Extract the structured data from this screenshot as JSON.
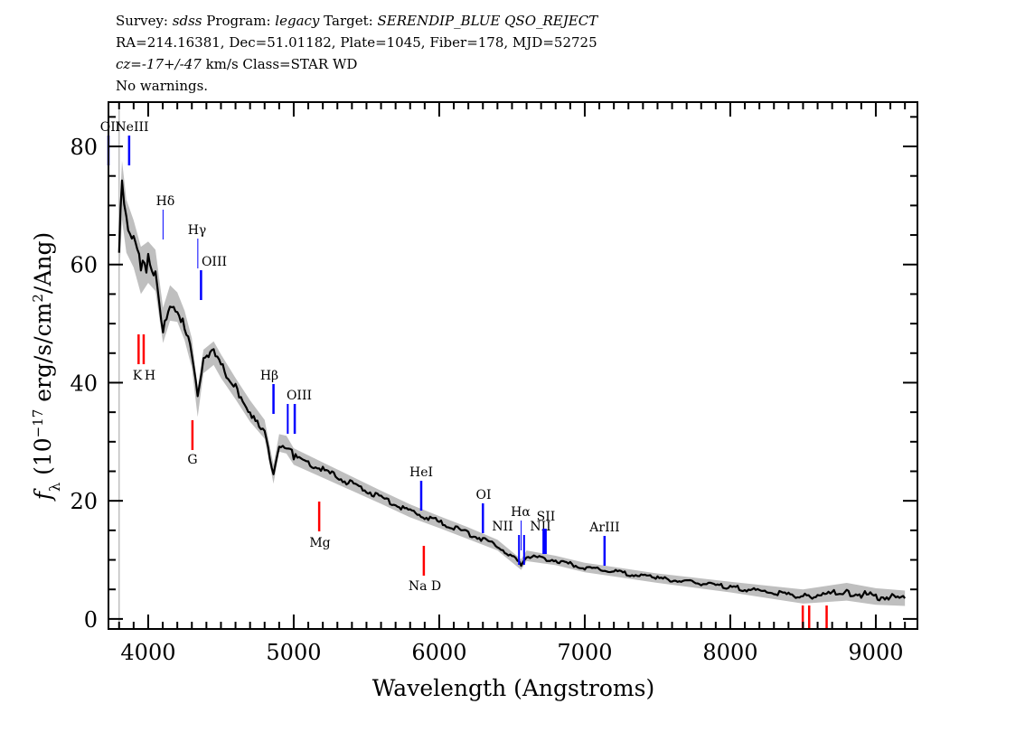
{
  "header": {
    "line1": {
      "survey_label": "Survey: ",
      "survey": "sdss",
      "program_label": " Program: ",
      "program": "legacy",
      "target_label": " Target: ",
      "target": "SERENDIP_BLUE QSO_REJECT"
    },
    "line2": "RA=214.16381, Dec=51.01182, Plate=1045, Fiber=178, MJD=52725",
    "line3": {
      "cz": "cz=-17+/-47",
      "rest": " km/s Class=STAR WD"
    },
    "line4": "No warnings."
  },
  "chart_data": {
    "type": "line",
    "xlabel": "Wavelength (Angstroms)",
    "ylabel": "f_λ (10^-17 erg/s/cm²/Ang)",
    "xlim": [
      3727,
      9286
    ],
    "ylim": [
      -1.7,
      87.5
    ],
    "x_ticks": [
      4000,
      5000,
      6000,
      7000,
      8000,
      9000
    ],
    "y_ticks": [
      0,
      20,
      40,
      60,
      80
    ],
    "grid": false,
    "colors": {
      "flux": "#000000",
      "error_band": "#bfbfbf",
      "emission": "#0000ff",
      "absorption": "#ff0000"
    },
    "spectrum": {
      "wavelength": [
        3800,
        3820,
        3850,
        3900,
        3950,
        4000,
        4050,
        4102,
        4150,
        4200,
        4250,
        4300,
        4340,
        4380,
        4450,
        4500,
        4600,
        4700,
        4800,
        4861,
        4900,
        4950,
        5000,
        5200,
        5400,
        5600,
        5800,
        6000,
        6200,
        6400,
        6563,
        6600,
        6800,
        7000,
        7200,
        7500,
        8000,
        8500,
        8800,
        9000,
        9200
      ],
      "flux": [
        62,
        72.6,
        66.5,
        63.5,
        59,
        60.4,
        59,
        49.7,
        53.5,
        52.8,
        49.7,
        45,
        36.7,
        43.6,
        45,
        42.8,
        39,
        35.2,
        32.1,
        24.5,
        29.8,
        29.5,
        27.5,
        25.2,
        22.9,
        20.6,
        18.3,
        16.4,
        14.5,
        12.5,
        9.2,
        10.7,
        9.9,
        8.7,
        8,
        6.9,
        5.4,
        3.8,
        4.6,
        3.8,
        3.5
      ],
      "error": [
        5,
        5,
        4.5,
        4,
        4,
        3.5,
        3.5,
        3,
        3,
        2.5,
        2.5,
        2.5,
        2.5,
        2,
        2,
        2,
        1.8,
        1.8,
        1.6,
        1.6,
        1.5,
        1.5,
        1.4,
        1.3,
        1.2,
        1.1,
        1.1,
        1,
        1,
        0.9,
        0.9,
        0.9,
        0.8,
        0.8,
        0.8,
        0.8,
        0.9,
        1.2,
        1.5,
        1.4,
        1.3
      ]
    },
    "emission_lines": [
      {
        "label": "OII",
        "wavelength": 3727
      },
      {
        "label": "NeIII",
        "wavelength": 3869
      },
      {
        "label": "Hδ",
        "wavelength": 4102
      },
      {
        "label": "Hγ",
        "wavelength": 4341
      },
      {
        "label": "OIII",
        "wavelength": 4363
      },
      {
        "label": "Hβ",
        "wavelength": 4861
      },
      {
        "label": "OIII",
        "wavelength": 4959
      },
      {
        "label": "",
        "wavelength": 5007
      },
      {
        "label": "HeI",
        "wavelength": 5876
      },
      {
        "label": "OI",
        "wavelength": 6300
      },
      {
        "label": "NII",
        "wavelength": 6548
      },
      {
        "label": "Hα",
        "wavelength": 6563
      },
      {
        "label": "NII",
        "wavelength": 6583
      },
      {
        "label": "SII",
        "wavelength": 6717
      },
      {
        "label": "",
        "wavelength": 6731
      },
      {
        "label": "ArIII",
        "wavelength": 7136
      }
    ],
    "absorption_lines": [
      {
        "label": "K",
        "wavelength": 3934
      },
      {
        "label": "H",
        "wavelength": 3969
      },
      {
        "label": "G",
        "wavelength": 4304
      },
      {
        "label": "Mg",
        "wavelength": 5175
      },
      {
        "label": "Na D",
        "wavelength": 5894
      },
      {
        "label": "",
        "wavelength": 8498
      },
      {
        "label": "",
        "wavelength": 8542
      },
      {
        "label": "",
        "wavelength": 8662
      }
    ]
  }
}
